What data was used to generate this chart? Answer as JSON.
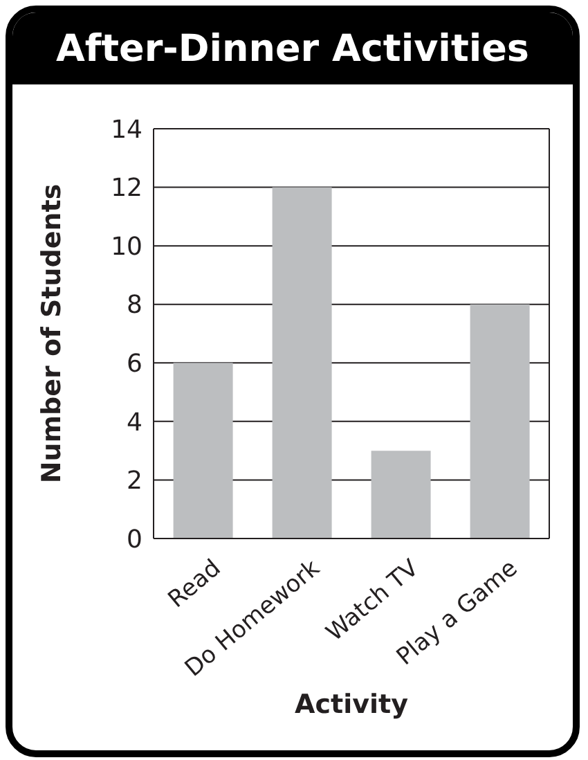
{
  "chart_data": {
    "type": "bar",
    "title": "After-Dinner Activities",
    "xlabel": "Activity",
    "ylabel": "Number of Students",
    "categories": [
      "Read",
      "Do Homework",
      "Watch TV",
      "Play a Game"
    ],
    "values": [
      6,
      12,
      3,
      8
    ],
    "color": "#bcbec0",
    "ylim": [
      0,
      14
    ],
    "yticks": [
      0,
      2,
      4,
      6,
      8,
      10,
      12,
      14
    ],
    "grid": "y"
  }
}
